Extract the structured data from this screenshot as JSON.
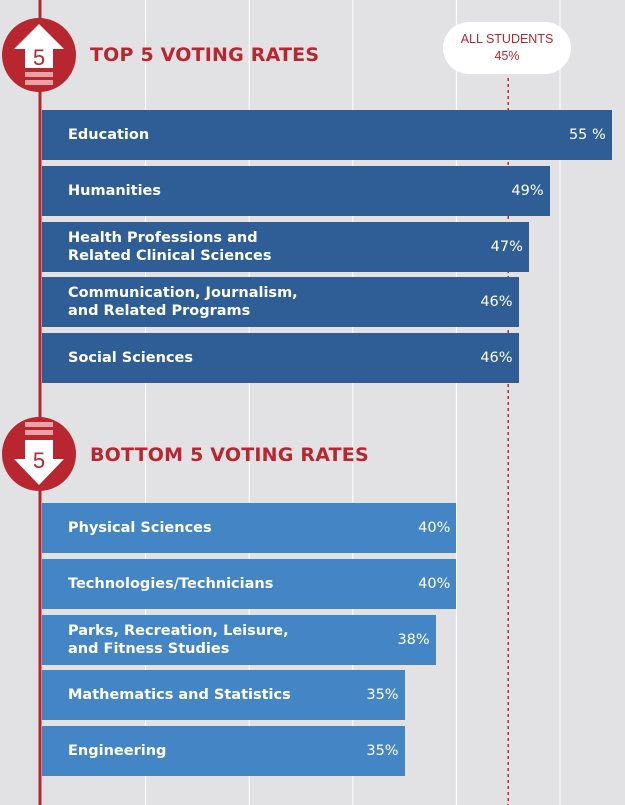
{
  "colors": {
    "accent": "#b8262f",
    "top_bar": "#2e5e95",
    "bottom_bar": "#4485c6",
    "background": "#e2e2e4",
    "gridline": "#ffffff"
  },
  "icons": {
    "top": "up-arrow-5-icon",
    "bottom": "down-arrow-5-icon",
    "top_digit": "5",
    "bottom_digit": "5"
  },
  "reference": {
    "label": "ALL STUDENTS",
    "value_text": "45%",
    "value": 45
  },
  "chart_data": [
    {
      "type": "bar",
      "orientation": "horizontal",
      "title": "TOP 5 VOTING RATES",
      "categories": [
        "Education",
        "Humanities",
        "Health Professions and\nRelated Clinical Sciences",
        "Communication, Journalism,\nand Related Programs",
        "Social Sciences"
      ],
      "values": [
        55,
        49,
        47,
        46,
        46
      ],
      "value_labels": [
        "55 %",
        "49%",
        "47%",
        "46%",
        "46%"
      ],
      "xlim": [
        0,
        55
      ],
      "grid": true
    },
    {
      "type": "bar",
      "orientation": "horizontal",
      "title": "BOTTOM 5 VOTING RATES",
      "categories": [
        "Physical Sciences",
        "Technologies/Technicians",
        "Parks, Recreation, Leisure,\nand Fitness Studies",
        "Mathematics and Statistics",
        "Engineering"
      ],
      "values": [
        40,
        40,
        38,
        35,
        35
      ],
      "value_labels": [
        "40%",
        "40%",
        "38%",
        "35%",
        "35%"
      ],
      "xlim": [
        0,
        55
      ],
      "grid": true
    }
  ]
}
